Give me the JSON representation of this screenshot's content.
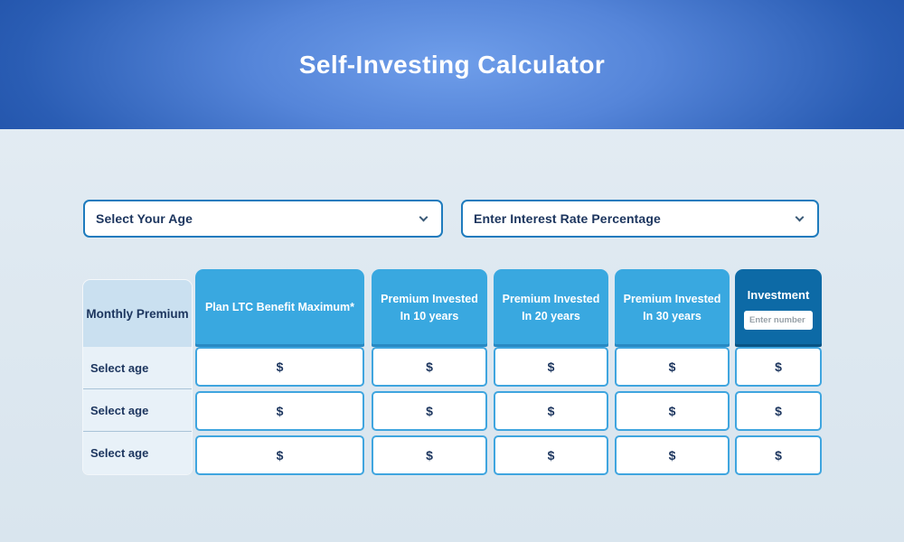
{
  "banner": {
    "title": "Self-Investing Calculator"
  },
  "filters": {
    "age": {
      "label": "Select Your Age"
    },
    "interest": {
      "label": "Enter Interest Rate Percentage"
    }
  },
  "table": {
    "monthly_premium_header": "Monthly Premium",
    "columns": [
      {
        "label": "Plan LTC Benefit Maximum*"
      },
      {
        "label": "Premium Invested In 10 years"
      },
      {
        "label": "Premium Invested In 20 years"
      },
      {
        "label": "Premium Invested In 30 years"
      }
    ],
    "investment": {
      "label": "Investment",
      "placeholder": "Enter number"
    },
    "rows": [
      {
        "age_label": "Select age",
        "values": [
          "$",
          "$",
          "$",
          "$",
          "$"
        ]
      },
      {
        "age_label": "Select age",
        "values": [
          "$",
          "$",
          "$",
          "$",
          "$"
        ]
      },
      {
        "age_label": "Select age",
        "values": [
          "$",
          "$",
          "$",
          "$",
          "$"
        ]
      }
    ]
  },
  "colors": {
    "banner_center": "#6f9eea",
    "banner_edge": "#17479d",
    "header_blue": "#39a8e0",
    "header_dark_blue": "#0d6aa6",
    "cell_border": "#3fa5df",
    "label_header_bg": "#cae0f0",
    "label_row_bg": "#e8f1f8",
    "navy_text": "#1c355e",
    "dropdown_border": "#1e7bbd",
    "page_bg": "#dfe9f1"
  }
}
